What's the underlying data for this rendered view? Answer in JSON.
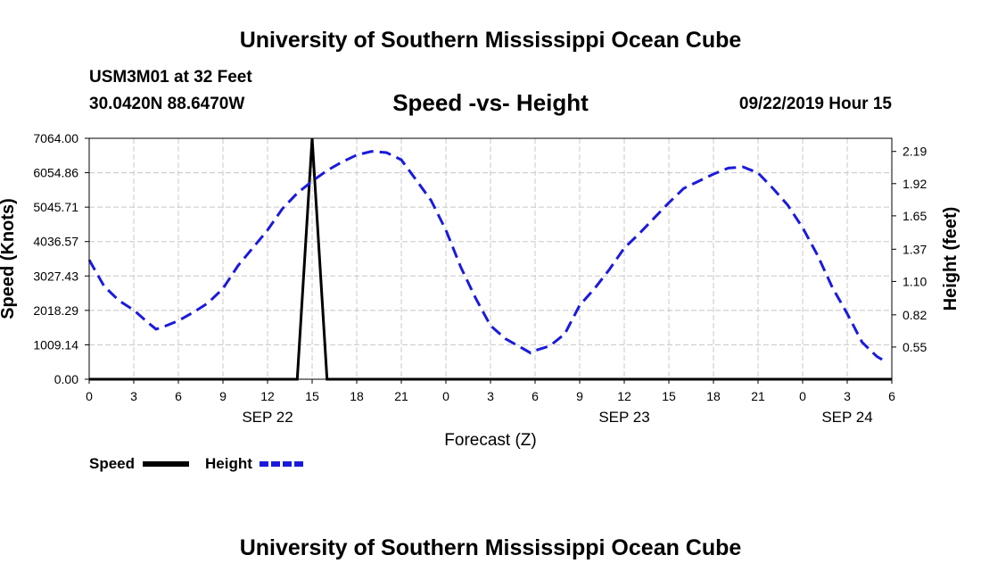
{
  "header": {
    "title": "University of Southern Mississippi Ocean Cube",
    "station": "USM3M01 at 32 Feet",
    "coords": "30.0420N 88.6470W",
    "chart_title": "Speed -vs- Height",
    "datetime": "09/22/2019 Hour 15"
  },
  "footer": {
    "title": "University of Southern Mississippi Ocean Cube"
  },
  "colors": {
    "speed": "#000000",
    "height": "#1a1adc",
    "grid": "#c8c8c8"
  },
  "chart_data": {
    "type": "line",
    "title": "Speed -vs- Height",
    "xlabel": "Forecast (Z)",
    "ylabel_left": "Speed (Knots)",
    "ylabel_right": "Height (feet)",
    "x_range": [
      0,
      54
    ],
    "x_ticks": [
      {
        "x": 0,
        "label": "0"
      },
      {
        "x": 3,
        "label": "3"
      },
      {
        "x": 6,
        "label": "6"
      },
      {
        "x": 9,
        "label": "9"
      },
      {
        "x": 12,
        "label": "12"
      },
      {
        "x": 15,
        "label": "15"
      },
      {
        "x": 18,
        "label": "18"
      },
      {
        "x": 21,
        "label": "21"
      },
      {
        "x": 24,
        "label": "0"
      },
      {
        "x": 27,
        "label": "3"
      },
      {
        "x": 30,
        "label": "6"
      },
      {
        "x": 33,
        "label": "9"
      },
      {
        "x": 36,
        "label": "12"
      },
      {
        "x": 39,
        "label": "15"
      },
      {
        "x": 42,
        "label": "18"
      },
      {
        "x": 45,
        "label": "21"
      },
      {
        "x": 48,
        "label": "0"
      },
      {
        "x": 51,
        "label": "3"
      },
      {
        "x": 54,
        "label": "6"
      }
    ],
    "date_labels": [
      {
        "x": 12,
        "label": "SEP 22"
      },
      {
        "x": 36,
        "label": "SEP 23"
      },
      {
        "x": 51,
        "label": "SEP 24"
      }
    ],
    "y_left": {
      "range": [
        0,
        7064
      ],
      "ticks": [
        "0.00",
        "1009.14",
        "2018.29",
        "3027.43",
        "4036.57",
        "5045.71",
        "6054.86",
        "7064.00"
      ]
    },
    "y_right": {
      "range": [
        0.28,
        2.3
      ],
      "ticks": [
        "0.55",
        "0.82",
        "1.10",
        "1.37",
        "1.65",
        "1.92",
        "2.19"
      ]
    },
    "series": [
      {
        "name": "Speed",
        "axis": "left",
        "x": [
          0,
          13,
          14,
          15,
          16,
          17,
          30,
          54
        ],
        "values": [
          0,
          0,
          0,
          7064,
          0,
          0,
          0,
          0
        ]
      },
      {
        "name": "Height",
        "axis": "right",
        "x": [
          0,
          1,
          2,
          3,
          4,
          4.5,
          5,
          6,
          7,
          8,
          9,
          10,
          11,
          12,
          13,
          14,
          15,
          16,
          17,
          18,
          19,
          20,
          21,
          22,
          23,
          24,
          25,
          26,
          27,
          28,
          29,
          29.7,
          30,
          31,
          32,
          33,
          34,
          35,
          36,
          37,
          38,
          39,
          40,
          41,
          42,
          43,
          44,
          45,
          46,
          47,
          48,
          49,
          50,
          51,
          52,
          53,
          53.7
        ],
        "values": [
          1.28,
          1.06,
          0.94,
          0.86,
          0.75,
          0.7,
          0.72,
          0.77,
          0.84,
          0.92,
          1.04,
          1.23,
          1.38,
          1.53,
          1.71,
          1.84,
          1.94,
          2.03,
          2.1,
          2.16,
          2.19,
          2.18,
          2.12,
          1.95,
          1.78,
          1.53,
          1.22,
          0.96,
          0.73,
          0.62,
          0.55,
          0.5,
          0.52,
          0.56,
          0.66,
          0.9,
          1.04,
          1.2,
          1.38,
          1.5,
          1.63,
          1.76,
          1.88,
          1.94,
          2.0,
          2.05,
          2.06,
          2.01,
          1.88,
          1.74,
          1.55,
          1.32,
          1.05,
          0.83,
          0.59,
          0.47,
          0.42
        ]
      }
    ],
    "legend": [
      "Speed",
      "Height"
    ],
    "grid": true
  }
}
